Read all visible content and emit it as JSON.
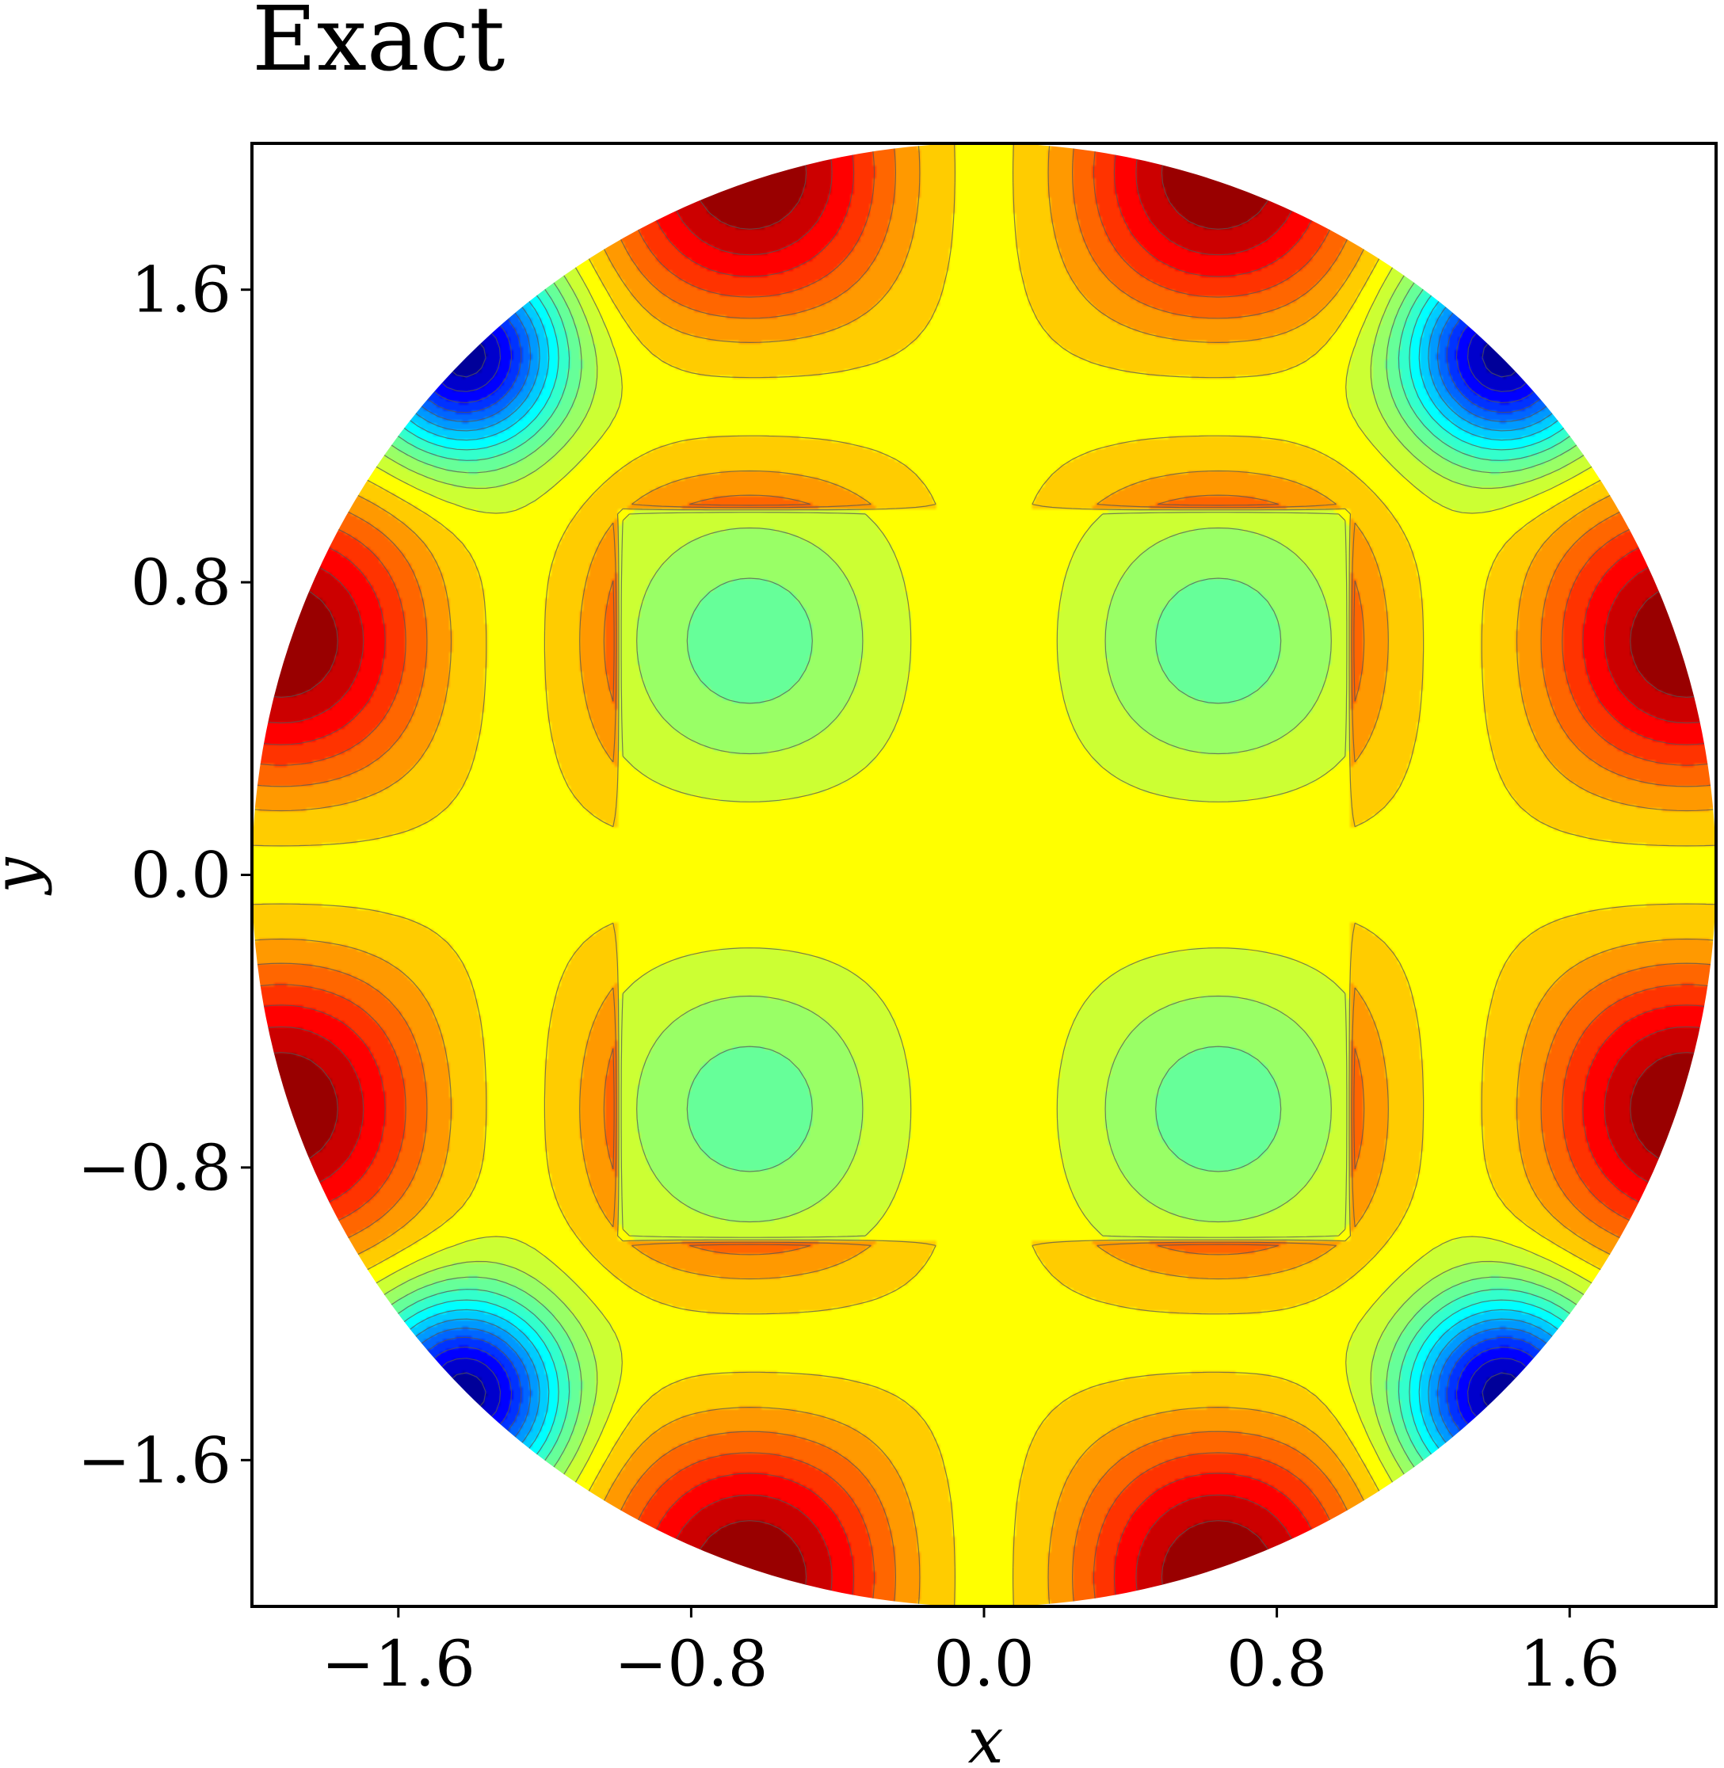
{
  "chart_data": {
    "type": "heatmap",
    "subtype": "filled contour plot on a circular domain",
    "title": "Exact",
    "xlabel": "x",
    "ylabel": "y",
    "xlim": [
      -2.0,
      2.0
    ],
    "ylim": [
      -2.0,
      2.0
    ],
    "domain_radius": 2.0,
    "xticks": [
      -1.6,
      -0.8,
      0.0,
      0.8,
      1.6
    ],
    "yticks": [
      -1.6,
      -0.8,
      0.0,
      0.8,
      1.6
    ],
    "xtick_labels": [
      "−1.6",
      "−0.8",
      "0.0",
      "0.8",
      "1.6"
    ],
    "ytick_labels": [
      "−1.6",
      "−0.8",
      "0.0",
      "0.8",
      "1.6"
    ],
    "colormap": "jet",
    "colorbar": false,
    "grid": false,
    "contour_lines": true,
    "features": [
      {
        "kind": "maximum",
        "x": -0.64,
        "y": 1.6
      },
      {
        "kind": "maximum",
        "x": 0.64,
        "y": 1.6
      },
      {
        "kind": "maximum",
        "x": -1.6,
        "y": 0.64
      },
      {
        "kind": "maximum",
        "x": 1.6,
        "y": 0.64
      },
      {
        "kind": "maximum",
        "x": -1.6,
        "y": -0.64
      },
      {
        "kind": "maximum",
        "x": 1.6,
        "y": -0.64
      },
      {
        "kind": "maximum",
        "x": -0.64,
        "y": -1.6
      },
      {
        "kind": "maximum",
        "x": 0.64,
        "y": -1.6
      },
      {
        "kind": "local minimum",
        "x": -0.64,
        "y": 0.64
      },
      {
        "kind": "local minimum",
        "x": 0.64,
        "y": 0.64
      },
      {
        "kind": "local minimum",
        "x": -0.64,
        "y": -0.64
      },
      {
        "kind": "local minimum",
        "x": 0.64,
        "y": -0.64
      },
      {
        "kind": "minimum",
        "x": -1.42,
        "y": 1.42
      },
      {
        "kind": "minimum",
        "x": 1.42,
        "y": 1.42
      },
      {
        "kind": "minimum",
        "x": -1.42,
        "y": -1.42
      },
      {
        "kind": "minimum",
        "x": 1.42,
        "y": -1.42
      }
    ]
  }
}
